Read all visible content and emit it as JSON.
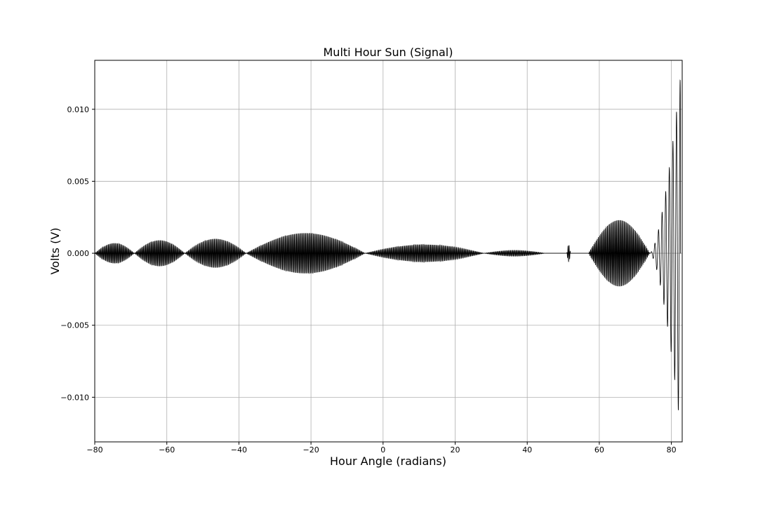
{
  "chart_data": {
    "type": "line",
    "title": "Multi Hour Sun (Signal)",
    "xlabel": "Hour Angle (radians)",
    "ylabel": "Volts (V)",
    "xlim": [
      -80,
      83
    ],
    "ylim": [
      -0.0131,
      0.0134
    ],
    "grid": true,
    "x_ticks": [
      -80,
      -60,
      -40,
      -20,
      0,
      20,
      40,
      60,
      80
    ],
    "x_tick_labels": [
      "−80",
      "−60",
      "−40",
      "−20",
      "0",
      "20",
      "40",
      "60",
      "80"
    ],
    "y_ticks": [
      -0.01,
      -0.005,
      0.0,
      0.005,
      0.01
    ],
    "y_tick_labels": [
      "−0.010",
      "−0.005",
      "0.000",
      "0.005",
      "0.010"
    ],
    "line_color": "#000000",
    "series": [
      {
        "values_description_segments": [
          {
            "x_start": -80,
            "x_end": -69,
            "envelope_peak": 0.0007,
            "envelope_peak_x": -75
          },
          {
            "x_start": -69,
            "x_end": -55,
            "envelope_peak": 0.0009,
            "envelope_peak_x": -62
          },
          {
            "x_start": -55,
            "x_end": -38,
            "envelope_peak": 0.001,
            "envelope_peak_x": -47
          },
          {
            "x_start": -38,
            "x_end": -5,
            "envelope_peak": 0.0014,
            "envelope_peak_x": -27
          },
          {
            "x_start": -5,
            "x_end": 28,
            "envelope_peak": 0.0006,
            "envelope_peak_x": 14
          },
          {
            "x_start": 28,
            "x_end": 45,
            "envelope_peak": 0.0002,
            "envelope_peak_x": 40
          },
          {
            "x_start": 51,
            "x_end": 52,
            "envelope_peak": 0.0006,
            "envelope_peak_x": 51.5
          },
          {
            "x_start": 57,
            "x_end": 74,
            "envelope_peak": 0.0023,
            "envelope_peak_x": 68
          },
          {
            "x_start": 74,
            "x_end": 82.5,
            "envelope_peak": 0.0122,
            "envelope_peak_x": 82
          }
        ]
      }
    ]
  }
}
